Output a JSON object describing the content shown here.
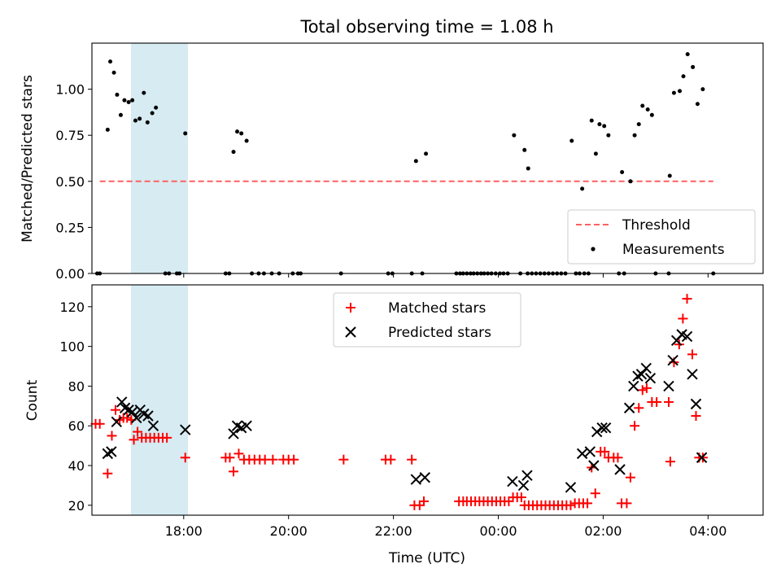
{
  "chart_data": [
    {
      "type": "scatter",
      "title": "Total observing time = 1.08 h",
      "xlabel": "",
      "ylabel": "Matched/Predicted stars",
      "xlim": [
        -0.75,
        12.05
      ],
      "ylim": [
        0,
        1.25
      ],
      "yticks": [
        0.0,
        0.25,
        0.5,
        0.75,
        1.0
      ],
      "ytick_labels": [
        "0.00",
        "0.25",
        "0.50",
        "0.75",
        "1.00"
      ],
      "xticks": [
        1,
        3,
        5,
        7,
        9,
        11
      ],
      "xtick_labels": [],
      "shaded_span": [
        -0.48,
        0.6
      ],
      "shaded_color": "#add8e6",
      "legend_location": "lower right",
      "grid": false,
      "threshold": {
        "name": "Threshold",
        "y": 0.5,
        "x_range": [
          -0.6,
          11.1
        ],
        "color": "#ff6060"
      },
      "series": [
        {
          "name": "Measurements",
          "color": "#000000",
          "points": [
            [
              -0.45,
              0.78
            ],
            [
              -0.4,
              1.15
            ],
            [
              -0.33,
              1.09
            ],
            [
              -0.27,
              0.97
            ],
            [
              -0.2,
              0.86
            ],
            [
              -0.13,
              0.94
            ],
            [
              -0.05,
              0.93
            ],
            [
              0.02,
              0.94
            ],
            [
              0.08,
              0.83
            ],
            [
              0.16,
              0.84
            ],
            [
              0.24,
              0.98
            ],
            [
              0.31,
              0.82
            ],
            [
              0.4,
              0.87
            ],
            [
              0.47,
              0.9
            ],
            [
              1.03,
              0.76
            ],
            [
              1.95,
              0.66
            ],
            [
              2.02,
              0.77
            ],
            [
              2.1,
              0.76
            ],
            [
              2.2,
              0.72
            ],
            [
              5.43,
              0.61
            ],
            [
              5.62,
              0.65
            ],
            [
              7.3,
              0.75
            ],
            [
              7.5,
              0.67
            ],
            [
              7.57,
              0.57
            ],
            [
              8.4,
              0.72
            ],
            [
              8.6,
              0.46
            ],
            [
              8.78,
              0.83
            ],
            [
              8.86,
              0.65
            ],
            [
              8.93,
              0.81
            ],
            [
              9.02,
              0.8
            ],
            [
              9.1,
              0.75
            ],
            [
              9.36,
              0.55
            ],
            [
              9.52,
              0.5
            ],
            [
              9.6,
              0.75
            ],
            [
              9.68,
              0.81
            ],
            [
              9.75,
              0.91
            ],
            [
              9.85,
              0.89
            ],
            [
              9.93,
              0.86
            ],
            [
              10.27,
              0.53
            ],
            [
              10.35,
              0.98
            ],
            [
              10.46,
              0.99
            ],
            [
              10.53,
              1.07
            ],
            [
              10.61,
              1.19
            ],
            [
              10.71,
              1.12
            ],
            [
              10.8,
              0.92
            ],
            [
              10.9,
              1.0
            ],
            [
              -0.65,
              0
            ],
            [
              -0.6,
              0
            ],
            [
              0.65,
              0
            ],
            [
              0.72,
              0
            ],
            [
              0.87,
              0
            ],
            [
              0.92,
              0
            ],
            [
              1.8,
              0
            ],
            [
              1.87,
              0
            ],
            [
              2.3,
              0
            ],
            [
              2.43,
              0
            ],
            [
              2.53,
              0
            ],
            [
              2.68,
              0
            ],
            [
              2.82,
              0
            ],
            [
              3.08,
              0
            ],
            [
              3.18,
              0
            ],
            [
              3.23,
              0
            ],
            [
              4.0,
              0
            ],
            [
              4.9,
              0
            ],
            [
              4.98,
              0
            ],
            [
              5.35,
              0
            ],
            [
              5.55,
              0
            ],
            [
              6.2,
              0
            ],
            [
              6.27,
              0
            ],
            [
              6.33,
              0
            ],
            [
              6.4,
              0
            ],
            [
              6.47,
              0
            ],
            [
              6.53,
              0
            ],
            [
              6.6,
              0
            ],
            [
              6.67,
              0
            ],
            [
              6.73,
              0
            ],
            [
              6.8,
              0
            ],
            [
              6.87,
              0
            ],
            [
              6.95,
              0
            ],
            [
              7.03,
              0
            ],
            [
              7.1,
              0
            ],
            [
              7.18,
              0
            ],
            [
              7.42,
              0
            ],
            [
              7.56,
              0
            ],
            [
              7.64,
              0
            ],
            [
              7.72,
              0
            ],
            [
              7.8,
              0
            ],
            [
              7.88,
              0
            ],
            [
              7.96,
              0
            ],
            [
              8.04,
              0
            ],
            [
              8.12,
              0
            ],
            [
              8.2,
              0
            ],
            [
              8.28,
              0
            ],
            [
              8.48,
              0
            ],
            [
              8.55,
              0
            ],
            [
              8.64,
              0
            ],
            [
              8.72,
              0
            ],
            [
              9.3,
              0
            ],
            [
              9.4,
              0
            ],
            [
              10.0,
              0
            ],
            [
              10.25,
              0
            ],
            [
              11.1,
              0
            ]
          ]
        }
      ]
    },
    {
      "type": "scatter",
      "title": "",
      "xlabel": "Time (UTC)",
      "ylabel": "Count",
      "xlim": [
        -0.75,
        12.05
      ],
      "ylim": [
        15,
        131
      ],
      "yticks": [
        20,
        40,
        60,
        80,
        100,
        120
      ],
      "ytick_labels": [
        "20",
        "40",
        "60",
        "80",
        "100",
        "120"
      ],
      "xticks": [
        1,
        3,
        5,
        7,
        9,
        11
      ],
      "xtick_labels": [
        "18:00",
        "20:00",
        "22:00",
        "00:00",
        "02:00",
        "04:00"
      ],
      "shaded_span": [
        -0.48,
        0.6
      ],
      "shaded_color": "#add8e6",
      "legend_location": "upper center",
      "grid": false,
      "series": [
        {
          "name": "Matched stars",
          "marker": "+",
          "color": "#ff0000",
          "points": [
            [
              -0.68,
              61
            ],
            [
              -0.6,
              61
            ],
            [
              -0.45,
              36
            ],
            [
              -0.37,
              55
            ],
            [
              -0.3,
              68
            ],
            [
              -0.22,
              63
            ],
            [
              -0.15,
              64
            ],
            [
              -0.08,
              64
            ],
            [
              0.0,
              63
            ],
            [
              0.05,
              53
            ],
            [
              0.12,
              57
            ],
            [
              0.2,
              54
            ],
            [
              0.28,
              54
            ],
            [
              0.36,
              54
            ],
            [
              0.44,
              54
            ],
            [
              0.52,
              54
            ],
            [
              0.6,
              54
            ],
            [
              0.68,
              54
            ],
            [
              1.03,
              44
            ],
            [
              1.8,
              44
            ],
            [
              1.88,
              44
            ],
            [
              1.95,
              37
            ],
            [
              2.05,
              46
            ],
            [
              2.15,
              43
            ],
            [
              2.25,
              43
            ],
            [
              2.35,
              43
            ],
            [
              2.45,
              43
            ],
            [
              2.55,
              43
            ],
            [
              2.7,
              43
            ],
            [
              2.9,
              43
            ],
            [
              3.0,
              43
            ],
            [
              3.1,
              43
            ],
            [
              4.05,
              43
            ],
            [
              4.85,
              43
            ],
            [
              4.95,
              43
            ],
            [
              5.35,
              43
            ],
            [
              5.4,
              20
            ],
            [
              5.5,
              20
            ],
            [
              5.58,
              22
            ],
            [
              6.25,
              22
            ],
            [
              6.33,
              22
            ],
            [
              6.4,
              22
            ],
            [
              6.48,
              22
            ],
            [
              6.56,
              22
            ],
            [
              6.64,
              22
            ],
            [
              6.72,
              22
            ],
            [
              6.8,
              22
            ],
            [
              6.88,
              22
            ],
            [
              6.96,
              22
            ],
            [
              7.04,
              22
            ],
            [
              7.12,
              22
            ],
            [
              7.2,
              22
            ],
            [
              7.28,
              24
            ],
            [
              7.36,
              24
            ],
            [
              7.44,
              24
            ],
            [
              7.5,
              20
            ],
            [
              7.58,
              20
            ],
            [
              7.66,
              20
            ],
            [
              7.74,
              20
            ],
            [
              7.82,
              20
            ],
            [
              7.9,
              20
            ],
            [
              7.98,
              20
            ],
            [
              8.06,
              20
            ],
            [
              8.14,
              20
            ],
            [
              8.22,
              20
            ],
            [
              8.3,
              20
            ],
            [
              8.38,
              20
            ],
            [
              8.46,
              21
            ],
            [
              8.54,
              21
            ],
            [
              8.62,
              21
            ],
            [
              8.7,
              21
            ],
            [
              8.78,
              39
            ],
            [
              8.85,
              26
            ],
            [
              8.95,
              47
            ],
            [
              9.03,
              47
            ],
            [
              9.1,
              44
            ],
            [
              9.2,
              44
            ],
            [
              9.28,
              44
            ],
            [
              9.35,
              21
            ],
            [
              9.45,
              21
            ],
            [
              9.52,
              34
            ],
            [
              9.6,
              60
            ],
            [
              9.68,
              69
            ],
            [
              9.75,
              78
            ],
            [
              9.83,
              79
            ],
            [
              9.93,
              72
            ],
            [
              10.02,
              72
            ],
            [
              10.25,
              72
            ],
            [
              10.28,
              42
            ],
            [
              10.35,
              92
            ],
            [
              10.45,
              101
            ],
            [
              10.52,
              114
            ],
            [
              10.6,
              124
            ],
            [
              10.7,
              96
            ],
            [
              10.77,
              65
            ],
            [
              10.83,
              44
            ],
            [
              10.9,
              44
            ]
          ]
        },
        {
          "name": "Predicted stars",
          "marker": "x",
          "color": "#000000",
          "points": [
            [
              -0.45,
              46
            ],
            [
              -0.38,
              47
            ],
            [
              -0.28,
              62
            ],
            [
              -0.18,
              72
            ],
            [
              -0.12,
              69
            ],
            [
              -0.05,
              68
            ],
            [
              0.02,
              67
            ],
            [
              0.1,
              64
            ],
            [
              0.17,
              68
            ],
            [
              0.24,
              66
            ],
            [
              0.32,
              65
            ],
            [
              0.42,
              60
            ],
            [
              1.03,
              58
            ],
            [
              1.95,
              56
            ],
            [
              2.02,
              60
            ],
            [
              2.1,
              59
            ],
            [
              2.2,
              60
            ],
            [
              5.43,
              33
            ],
            [
              5.6,
              34
            ],
            [
              7.27,
              32
            ],
            [
              7.48,
              30
            ],
            [
              7.55,
              35
            ],
            [
              8.38,
              29
            ],
            [
              8.6,
              46
            ],
            [
              8.75,
              47
            ],
            [
              8.82,
              40
            ],
            [
              8.88,
              57
            ],
            [
              8.98,
              59
            ],
            [
              9.05,
              59
            ],
            [
              9.32,
              38
            ],
            [
              9.5,
              69
            ],
            [
              9.58,
              80
            ],
            [
              9.66,
              85
            ],
            [
              9.73,
              86
            ],
            [
              9.82,
              89
            ],
            [
              9.9,
              84
            ],
            [
              10.25,
              80
            ],
            [
              10.33,
              93
            ],
            [
              10.4,
              103
            ],
            [
              10.5,
              106
            ],
            [
              10.6,
              105
            ],
            [
              10.7,
              86
            ],
            [
              10.77,
              71
            ],
            [
              10.88,
              44
            ]
          ]
        }
      ]
    }
  ]
}
